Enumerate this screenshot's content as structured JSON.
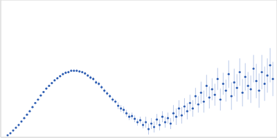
{
  "chart_data": {
    "type": "scatter",
    "x": [
      0.0088,
      0.0123,
      0.0158,
      0.0193,
      0.0228,
      0.0263,
      0.0298,
      0.0333,
      0.0368,
      0.0403,
      0.0438,
      0.0473,
      0.0508,
      0.0543,
      0.0578,
      0.0613,
      0.0648,
      0.0683,
      0.0718,
      0.0753,
      0.0788,
      0.0823,
      0.0858,
      0.0893,
      0.0928,
      0.0963,
      0.0998,
      0.1033,
      0.1068,
      0.1103,
      0.1138,
      0.1173,
      0.1208,
      0.1243,
      0.1278,
      0.1313,
      0.1348,
      0.1383,
      0.1418,
      0.1453,
      0.1488,
      0.1523,
      0.1558,
      0.1593,
      0.1628,
      0.1663,
      0.1698,
      0.1733,
      0.1768,
      0.1803,
      0.1838,
      0.1873,
      0.1908,
      0.1943,
      0.1978,
      0.2013,
      0.2048,
      0.2083,
      0.2118,
      0.2153,
      0.2188,
      0.2223,
      0.2258,
      0.2293,
      0.2328,
      0.2363,
      0.2398,
      0.2433,
      0.2468,
      0.2503,
      0.2538,
      0.2573,
      0.2608,
      0.2643,
      0.2678,
      0.2713,
      0.2748,
      0.2783,
      0.2818,
      0.2853,
      0.2888,
      0.2923,
      0.2958,
      0.2993,
      0.3028,
      0.3063,
      0.3098,
      0.3133,
      0.3168,
      0.3203,
      0.3238,
      0.3273,
      0.3308,
      0.3343,
      0.3378,
      0.3413,
      0.3448
    ],
    "values": [
      0.03,
      0.06,
      0.1,
      0.14,
      0.18,
      0.23,
      0.28,
      0.33,
      0.38,
      0.44,
      0.5,
      0.55,
      0.61,
      0.66,
      0.71,
      0.75,
      0.79,
      0.83,
      0.86,
      0.89,
      0.92,
      0.94,
      0.95,
      0.97,
      0.97,
      0.97,
      0.96,
      0.95,
      0.93,
      0.9,
      0.87,
      0.85,
      0.8,
      0.78,
      0.73,
      0.68,
      0.64,
      0.6,
      0.55,
      0.52,
      0.46,
      0.42,
      0.4,
      0.35,
      0.3,
      0.31,
      0.27,
      0.22,
      0.25,
      0.18,
      0.22,
      0.12,
      0.2,
      0.15,
      0.26,
      0.18,
      0.3,
      0.22,
      0.28,
      0.2,
      0.35,
      0.3,
      0.42,
      0.32,
      0.45,
      0.38,
      0.5,
      0.42,
      0.6,
      0.48,
      0.65,
      0.52,
      0.75,
      0.58,
      0.7,
      0.62,
      0.85,
      0.55,
      0.78,
      0.68,
      0.92,
      0.6,
      0.8,
      0.72,
      0.95,
      0.65,
      0.88,
      0.75,
      0.7,
      1.0,
      0.82,
      0.68,
      0.95,
      0.78,
      0.9,
      1.05,
      0.85
    ],
    "errors": [
      0.01,
      0.01,
      0.01,
      0.01,
      0.01,
      0.01,
      0.01,
      0.01,
      0.01,
      0.01,
      0.01,
      0.01,
      0.01,
      0.01,
      0.01,
      0.01,
      0.01,
      0.01,
      0.01,
      0.01,
      0.02,
      0.02,
      0.02,
      0.02,
      0.02,
      0.02,
      0.02,
      0.02,
      0.02,
      0.02,
      0.03,
      0.03,
      0.03,
      0.03,
      0.03,
      0.03,
      0.03,
      0.03,
      0.03,
      0.03,
      0.05,
      0.05,
      0.05,
      0.05,
      0.05,
      0.05,
      0.05,
      0.05,
      0.05,
      0.05,
      0.08,
      0.08,
      0.08,
      0.08,
      0.08,
      0.08,
      0.08,
      0.08,
      0.08,
      0.08,
      0.12,
      0.12,
      0.12,
      0.12,
      0.12,
      0.12,
      0.12,
      0.12,
      0.12,
      0.12,
      0.16,
      0.16,
      0.16,
      0.16,
      0.16,
      0.16,
      0.16,
      0.16,
      0.16,
      0.16,
      0.2,
      0.2,
      0.2,
      0.2,
      0.2,
      0.2,
      0.2,
      0.2,
      0.2,
      0.2,
      0.25,
      0.25,
      0.25,
      0.25,
      0.25,
      0.25,
      0.25
    ],
    "color": "#2f5fb3",
    "marker": "circle",
    "xlim": [
      0,
      0.35
    ],
    "ylim": [
      0,
      2
    ],
    "xticks": [
      0.1
    ],
    "yticks": [
      1
    ],
    "grid": true,
    "tick_labels": false
  }
}
